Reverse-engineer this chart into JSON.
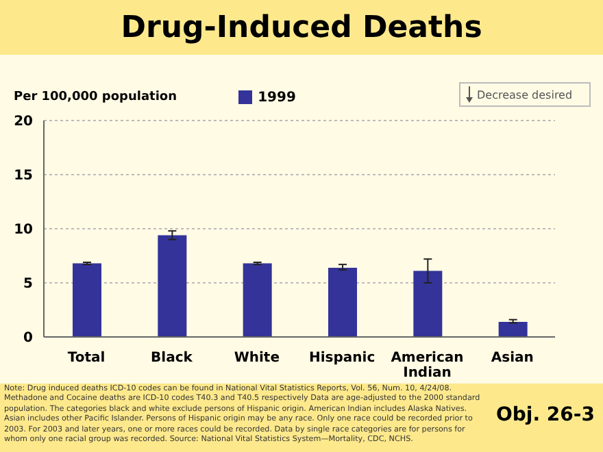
{
  "chart_data": {
    "type": "bar",
    "title": "Drug-Induced Deaths",
    "ylabel": "Per 100,000 population",
    "categories": [
      "Total",
      "Black",
      "White",
      "Hispanic",
      "American Indian",
      "Asian"
    ],
    "series": [
      {
        "name": "1999",
        "color": "#333399",
        "values": [
          6.8,
          9.4,
          6.8,
          6.4,
          6.1,
          1.4
        ],
        "errors": [
          0.1,
          [
            9.0,
            9.8
          ],
          0.1,
          [
            6.2,
            6.7
          ],
          [
            5.0,
            7.2
          ],
          [
            1.3,
            1.6
          ]
        ]
      }
    ],
    "ylim": [
      0,
      20
    ],
    "yticks": [
      0,
      5,
      10,
      15,
      20
    ],
    "grid": "y",
    "legend": "top",
    "annotations": [
      "Decrease desired",
      "Obj. 26-3",
      "Note: Drug induced deaths ICD-10 codes can be found in National Vital Statistics Reports, Vol. 56, Num. 10, 4/24/08. Methadone and Cocaine deaths are ICD-10 codes T40.3 and T40.5 respectively Data are age-adjusted to the 2000 standard population. The categories black and white exclude persons of Hispanic origin. American Indian includes Alaska Natives. Asian includes other Pacific Islander. Persons of Hispanic origin may be any race. Only one race could be recorded prior to 2003. For 2003 and later years, one or more races could be recorded. Data by single race categories are for persons for whom only one racial group was recorded. Source: National Vital Statistics System—Mortality, CDC, NCHS."
    ]
  }
}
